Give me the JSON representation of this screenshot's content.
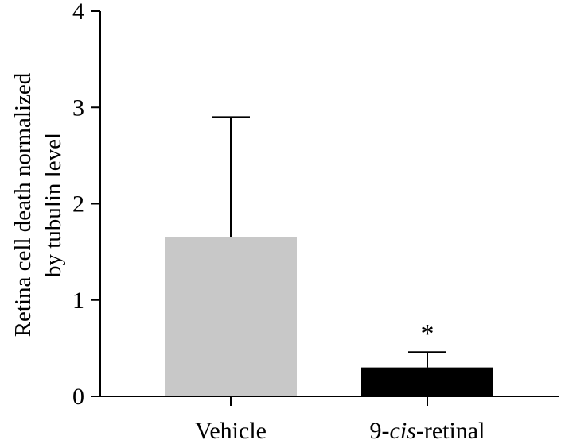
{
  "chart_data": {
    "type": "bar",
    "title": "",
    "xlabel": "",
    "ylabel_lines": [
      "Retina  cell death normalized",
      "by tubulin level"
    ],
    "ylim": [
      0,
      4
    ],
    "yticks": [
      "0",
      "1",
      "2",
      "3",
      "4"
    ],
    "categories": [
      {
        "prefix": "",
        "italic": "",
        "suffix": "Vehicle"
      },
      {
        "prefix": "9-",
        "italic": "cis",
        "suffix": "-retinal"
      }
    ],
    "values": [
      1.65,
      0.3
    ],
    "error_upper": [
      2.9,
      0.46
    ],
    "colors": [
      "#c8c8c8",
      "#000000"
    ],
    "annotations": [
      "",
      "*"
    ],
    "grid": false,
    "legend": "none"
  }
}
